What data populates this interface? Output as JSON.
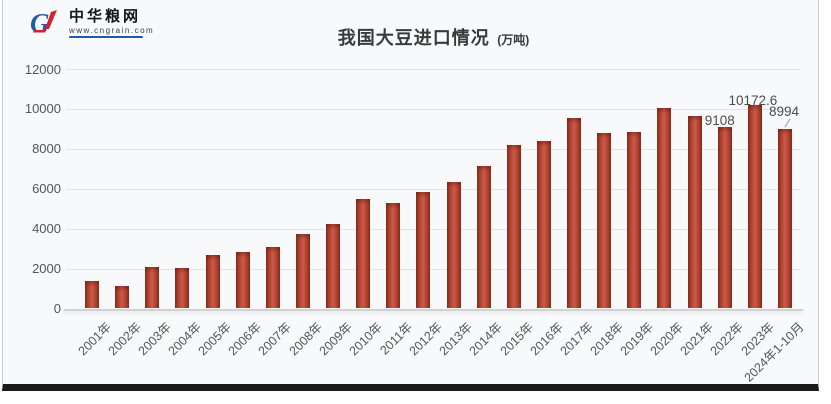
{
  "logo": {
    "name": "中华粮网",
    "url_text": "www.cngrain.com"
  },
  "title": {
    "text": "我国大豆进口情况",
    "unit": "(万吨)"
  },
  "chart_data": {
    "type": "bar",
    "title": "我国大豆进口情况",
    "unit_label": "万吨",
    "categories": [
      "2001年",
      "2002年",
      "2003年",
      "2004年",
      "2005年",
      "2006年",
      "2007年",
      "2008年",
      "2009年",
      "2010年",
      "2011年",
      "2012年",
      "2013年",
      "2014年",
      "2015年",
      "2016年",
      "2017年",
      "2018年",
      "2019年",
      "2020年",
      "2021年",
      "2022年",
      "2023年",
      "2024年1-10月"
    ],
    "values": [
      1394,
      1132,
      2074,
      2023,
      2659,
      2824,
      3082,
      3744,
      4255,
      5480,
      5264,
      5838,
      6338,
      7140,
      8169,
      8391,
      9553,
      8803,
      8851,
      10033,
      9652,
      9108,
      10172.6,
      8994
    ],
    "data_labels": [
      {
        "index": 21,
        "text": "9108"
      },
      {
        "index": 22,
        "text": "10172.6"
      },
      {
        "index": 23,
        "text": "8994",
        "leader_line": true
      }
    ],
    "xlabel": "",
    "ylabel": "",
    "ylim": [
      0,
      12000
    ],
    "yticks": [
      0,
      2000,
      4000,
      6000,
      8000,
      10000,
      12000
    ],
    "grid": true,
    "legend_position": "none"
  },
  "colors": {
    "background": "#f8f9fa",
    "grid": "#e3e3e3",
    "axis_text": "#555555",
    "bar_center": "#cd5a4a",
    "bar_mid": "#a63c2a",
    "bar_edge": "#8e2f1f",
    "title_text": "#3a3a3a",
    "logo_blue": "#1a5dab",
    "logo_red": "#d2232a",
    "bottom_bar": "#1b1b1b"
  }
}
